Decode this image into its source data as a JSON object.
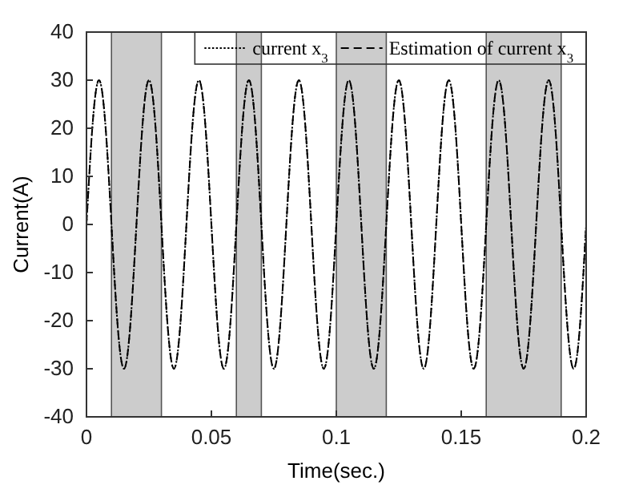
{
  "chart_data": {
    "type": "line",
    "xlabel": "Time(sec.)",
    "ylabel": "Current(A)",
    "x": [
      0,
      0.0025,
      0.005,
      0.0075,
      0.01,
      0.0125,
      0.015,
      0.0175,
      0.02,
      0.0225,
      0.025,
      0.0275,
      0.03,
      0.0325,
      0.035,
      0.0375,
      0.04,
      0.0425,
      0.045,
      0.0475,
      0.05,
      0.0525,
      0.055,
      0.0575,
      0.06,
      0.0625,
      0.065,
      0.0675,
      0.07,
      0.0725,
      0.075,
      0.0775,
      0.08,
      0.0825,
      0.085,
      0.0875,
      0.09,
      0.0925,
      0.095,
      0.0975,
      0.1,
      0.1025,
      0.105,
      0.1075,
      0.11,
      0.1125,
      0.115,
      0.1175,
      0.12,
      0.1225,
      0.125,
      0.1275,
      0.13,
      0.1325,
      0.135,
      0.1375,
      0.14,
      0.1425,
      0.145,
      0.1475,
      0.15,
      0.1525,
      0.155,
      0.1575,
      0.16,
      0.1625,
      0.165,
      0.1675,
      0.17,
      0.1725,
      0.175,
      0.1775,
      0.18,
      0.1825,
      0.185,
      0.1875,
      0.19,
      0.1925,
      0.195,
      0.1975,
      0.2
    ],
    "series": [
      {
        "name": "current x$_{3}$",
        "color": "#000000",
        "line_style": "dotted",
        "values": [
          0,
          21.2,
          30,
          21.2,
          0,
          -21.2,
          -30,
          -21.2,
          0,
          21.2,
          30,
          21.2,
          0,
          -21.2,
          -30,
          -21.2,
          0,
          21.2,
          30,
          21.2,
          0,
          -21.2,
          -30,
          -21.2,
          0,
          21.2,
          30,
          21.2,
          0,
          -21.2,
          -30,
          -21.2,
          0,
          21.2,
          30,
          21.2,
          0,
          -21.2,
          -30,
          -21.2,
          0,
          21.2,
          30,
          21.2,
          0,
          -21.2,
          -30,
          -21.2,
          0,
          21.2,
          30,
          21.2,
          0,
          -21.2,
          -30,
          -21.2,
          0,
          21.2,
          30,
          21.2,
          0,
          -21.2,
          -30,
          -21.2,
          0,
          21.2,
          30,
          21.2,
          0,
          -21.2,
          -30,
          -21.2,
          0,
          21.2,
          30,
          21.2,
          0,
          -21.2,
          -30,
          -21.2,
          0
        ]
      },
      {
        "name": "Estimation of current x$_{3}$",
        "color": "#000000",
        "line_style": "dashed",
        "values": [
          0,
          21.2,
          30,
          21.2,
          0,
          -21.2,
          -30,
          -21.2,
          0,
          21.2,
          30,
          21.2,
          0,
          -21.2,
          -30,
          -21.2,
          0,
          21.2,
          30,
          21.2,
          0,
          -21.2,
          -30,
          -21.2,
          0,
          21.2,
          30,
          21.2,
          0,
          -21.2,
          -30,
          -21.2,
          0,
          21.2,
          30,
          21.2,
          0,
          -21.2,
          -30,
          -21.2,
          0,
          21.2,
          30,
          21.2,
          0,
          -21.2,
          -30,
          -21.2,
          0,
          21.2,
          30,
          21.2,
          0,
          -21.2,
          -30,
          -21.2,
          0,
          21.2,
          30,
          21.2,
          0,
          -21.2,
          -30,
          -21.2,
          0,
          21.2,
          30,
          21.2,
          0,
          -21.2,
          -30,
          -21.2,
          0,
          21.2,
          30,
          21.2,
          0,
          -21.2,
          -30,
          -21.2,
          0
        ]
      }
    ],
    "bands": [
      {
        "axis": "x",
        "from": 0.01,
        "to": 0.03,
        "color": "#cccccc"
      },
      {
        "axis": "x",
        "from": 0.06,
        "to": 0.07,
        "color": "#cccccc"
      },
      {
        "axis": "x",
        "from": 0.1,
        "to": 0.12,
        "color": "#cccccc"
      },
      {
        "axis": "x",
        "from": 0.16,
        "to": 0.19,
        "color": "#cccccc"
      }
    ],
    "xlim": [
      0,
      0.2
    ],
    "xticks": [
      0,
      0.05,
      0.1,
      0.15,
      0.2
    ],
    "ylim": [
      -40,
      40
    ],
    "yticks": [
      -40,
      -30,
      -20,
      -10,
      0,
      10,
      20,
      30,
      40
    ],
    "grid": false,
    "legend": "top right"
  }
}
